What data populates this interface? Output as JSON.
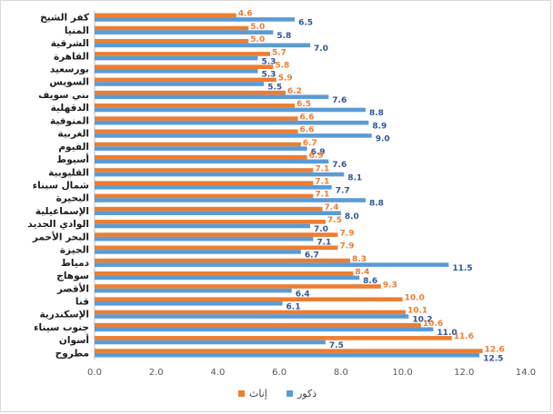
{
  "chart_data": {
    "type": "bar",
    "orientation": "horizontal",
    "categories": [
      "كفر الشيخ",
      "المنيا",
      "الشرقية",
      "القاهرة",
      "بورسعيد",
      "السويس",
      "بني سويف",
      "الدقهلية",
      "المنوفية",
      "الغربية",
      "الفيوم",
      "أسيوط",
      "القليوبية",
      "شمال سيناء",
      "البحيرة",
      "الإسماعيلية",
      "الوادي الجديد",
      "البحر الأحمر",
      "الجيزة",
      "دمياط",
      "سوهاج",
      "الأقصر",
      "قنا",
      "الإسكندرية",
      "جنوب سيناء",
      "أسوان",
      "مطروح"
    ],
    "series": [
      {
        "name": "إناث",
        "color": "#ed7d31",
        "values": [
          4.6,
          5.0,
          5.0,
          5.7,
          5.8,
          5.9,
          6.2,
          6.5,
          6.6,
          6.6,
          6.7,
          6.9,
          7.1,
          7.1,
          7.1,
          7.4,
          7.5,
          7.9,
          7.9,
          8.3,
          8.4,
          9.3,
          10.0,
          10.1,
          10.6,
          11.6,
          12.6
        ]
      },
      {
        "name": "ذكور",
        "color": "#5b9bd5",
        "values": [
          6.5,
          5.8,
          7.0,
          5.3,
          5.3,
          5.5,
          7.6,
          8.8,
          8.9,
          9.0,
          6.9,
          7.6,
          8.1,
          7.7,
          8.8,
          8.0,
          7.0,
          7.1,
          6.7,
          11.5,
          8.6,
          6.4,
          6.1,
          10.2,
          11.0,
          7.5,
          12.5
        ]
      }
    ],
    "value_labels": {
      "female": [
        "4.6",
        "5.0",
        "5.0",
        "5.7",
        "5.8",
        "5.9",
        "6.2",
        "6.5",
        "6.6",
        "6.6",
        "6.7",
        "6.9",
        "7.1",
        "7.1",
        "7.1",
        "7.4",
        "7.5",
        "7.9",
        "7.9",
        "8.3",
        "8.4",
        "9.3",
        "10.0",
        "10.1",
        "10.6",
        "11.6",
        "12.6"
      ],
      "male": [
        "6.5",
        "5.8",
        "7.0",
        "5.3",
        "5.3",
        "5.5",
        "7.6",
        "8.8",
        "8.9",
        "9.0",
        "6.9",
        "7.6",
        "8.1",
        "7.7",
        "8.8",
        "8.0",
        "7.0",
        "7.1",
        "6.7",
        "11.5",
        "8.6",
        "6.4",
        "6.1",
        "10.2",
        "11.0",
        "7.5",
        "12.5"
      ]
    },
    "xlim": [
      0,
      14
    ],
    "xticks": [
      "0.0",
      "2.0",
      "4.0",
      "6.0",
      "8.0",
      "10.0",
      "12.0",
      "14.0"
    ],
    "grid": false,
    "legend_position": "bottom",
    "legend": [
      "إناث",
      "ذكور"
    ]
  }
}
